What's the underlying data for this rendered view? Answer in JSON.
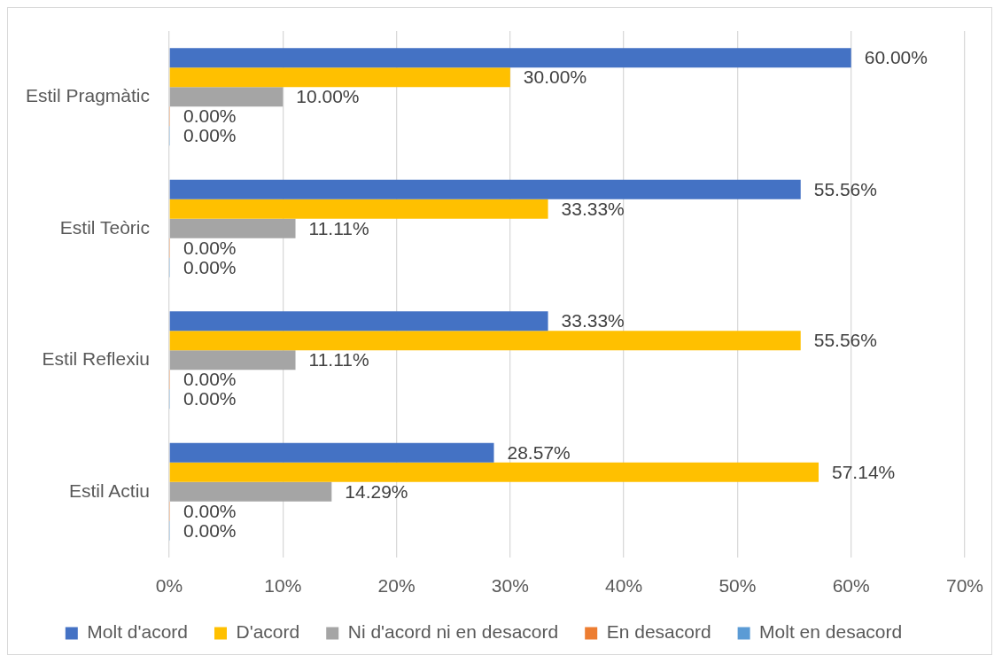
{
  "chart_data": {
    "type": "bar",
    "orientation": "horizontal",
    "categories": [
      "Estil Pragmàtic",
      "Estil Teòric",
      "Estil Reflexiu",
      "Estil Actiu"
    ],
    "series": [
      {
        "name": "Molt d'acord",
        "color": "#4472c4",
        "values": [
          60,
          55.56,
          33.33,
          28.57
        ],
        "value_labels": [
          "60.00%",
          "55.56%",
          "33.33%",
          "28.57%"
        ]
      },
      {
        "name": "D'acord",
        "color": "#ffc000",
        "values": [
          30,
          33.33,
          55.56,
          57.14
        ],
        "value_labels": [
          "30.00%",
          "33.33%",
          "55.56%",
          "57.14%"
        ]
      },
      {
        "name": "Ni d'acord ni en desacord",
        "color": "#a5a5a5",
        "values": [
          10,
          11.11,
          11.11,
          14.29
        ],
        "value_labels": [
          "10.00%",
          "11.11%",
          "11.11%",
          "14.29%"
        ]
      },
      {
        "name": "En desacord",
        "color": "#ed7d31",
        "values": [
          0,
          0,
          0,
          0
        ],
        "value_labels": [
          "0.00%",
          "0.00%",
          "0.00%",
          "0.00%"
        ]
      },
      {
        "name": "Molt en desacord",
        "color": "#5b9bd5",
        "values": [
          0,
          0,
          0,
          0
        ],
        "value_labels": [
          "0.00%",
          "0.00%",
          "0.00%",
          "0.00%"
        ]
      }
    ],
    "xlim": [
      0,
      70
    ],
    "xticks": [
      {
        "value": 0,
        "label": "0%"
      },
      {
        "value": 10,
        "label": "10%"
      },
      {
        "value": 20,
        "label": "20%"
      },
      {
        "value": 30,
        "label": "30%"
      },
      {
        "value": 40,
        "label": "40%"
      },
      {
        "value": 50,
        "label": "50%"
      },
      {
        "value": 60,
        "label": "60%"
      },
      {
        "value": 70,
        "label": "70%"
      }
    ],
    "grid": "x",
    "legend": "bottom"
  }
}
